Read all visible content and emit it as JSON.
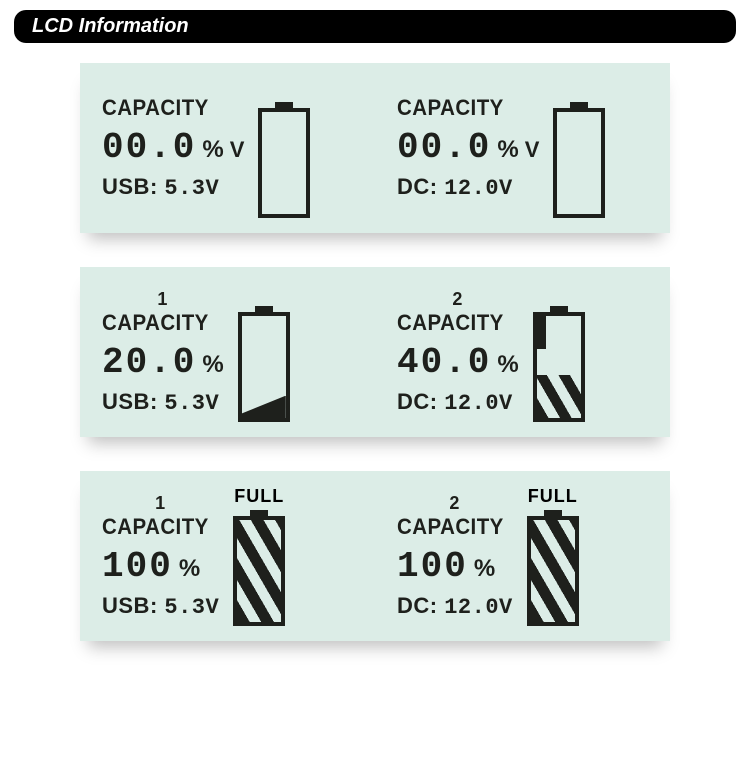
{
  "header": {
    "title": "LCD Information"
  },
  "colors": {
    "panel_bg": "#dcede7",
    "ink": "#1e201c",
    "page_bg": "#ffffff",
    "header_bg": "#000000",
    "header_fg": "#ffffff"
  },
  "labels": {
    "capacity": "CAPACITY",
    "percent": "%",
    "volt": "V",
    "full": "FULL",
    "usb_prefix": "USB:",
    "dc_prefix": "DC:"
  },
  "panels": [
    {
      "cells": [
        {
          "slot": "",
          "value": "00.0",
          "show_v": true,
          "source": "USB",
          "source_value": "5.3",
          "fill": 0,
          "full": false
        },
        {
          "slot": "",
          "value": "00.0",
          "show_v": true,
          "source": "DC",
          "source_value": "12.0",
          "fill": 0,
          "full": false
        }
      ]
    },
    {
      "cells": [
        {
          "slot": "1",
          "value": "20.0",
          "show_v": false,
          "source": "USB",
          "source_value": "5.3",
          "fill": 20,
          "full": false
        },
        {
          "slot": "2",
          "value": "40.0",
          "show_v": false,
          "source": "DC",
          "source_value": "12.0",
          "fill": 40,
          "full": false
        }
      ]
    },
    {
      "cells": [
        {
          "slot": "1",
          "value": "100",
          "show_v": false,
          "source": "USB",
          "source_value": "5.3",
          "fill": 100,
          "full": true
        },
        {
          "slot": "2",
          "value": "100",
          "show_v": false,
          "source": "DC",
          "source_value": "12.0",
          "fill": 100,
          "full": true
        }
      ]
    }
  ]
}
